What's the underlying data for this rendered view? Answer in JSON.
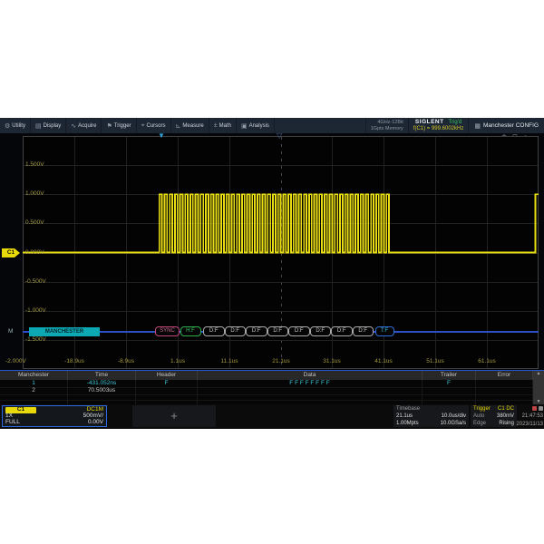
{
  "menu": {
    "items": [
      {
        "icon": "⚙",
        "label": "Utility"
      },
      {
        "icon": "▤",
        "label": "Display"
      },
      {
        "icon": "∿",
        "label": "Acquire"
      },
      {
        "icon": "⚑",
        "label": "Trigger"
      },
      {
        "icon": "⌖",
        "label": "Cursors"
      },
      {
        "icon": "⊾",
        "label": "Measure"
      },
      {
        "icon": "±",
        "label": "Math"
      },
      {
        "icon": "▣",
        "label": "Analysis"
      }
    ],
    "bandwidth": "4GHz-12Bit",
    "memory": "1Gpts Memory",
    "brand": "SIGLENT",
    "trig_status": "Trig'd",
    "freq_readout": "f(C1) = 999.6002kHz",
    "config_icon": "▦",
    "config_label": "Manchester CONFIG"
  },
  "display": {
    "corner_icons": [
      {
        "glyph": "◉",
        "name": "record-icon"
      },
      {
        "glyph": "⊡",
        "name": "fullscreen-icon"
      },
      {
        "glyph": "∩",
        "name": "headset-icon"
      }
    ],
    "trig_marker_solid": "▼",
    "trig_marker_hollow": "▽",
    "v_labels": [
      "1.500V",
      "1.000V",
      "0.500V",
      "0.000V",
      "-0.500V",
      "-1.000V",
      "-1.500V"
    ],
    "v_label_bottom": "-2.000V",
    "t_labels": [
      "-18.9us",
      "-8.9us",
      "1.1us",
      "11.1us",
      "21.1us",
      "31.1us",
      "41.1us",
      "51.1us",
      "61.1us"
    ],
    "decode": {
      "channel": "M",
      "name": "MANCHESTER",
      "boxes": [
        {
          "label": "SYNC",
          "type": "sync"
        },
        {
          "label": "H:F",
          "type": "header"
        },
        {
          "label": "D:F",
          "type": "data"
        },
        {
          "label": "D:F",
          "type": "data"
        },
        {
          "label": "D:F",
          "type": "data"
        },
        {
          "label": "D:F",
          "type": "data"
        },
        {
          "label": "D:F",
          "type": "data"
        },
        {
          "label": "D:F",
          "type": "data"
        },
        {
          "label": "D:F",
          "type": "data"
        },
        {
          "label": "D:F",
          "type": "data"
        },
        {
          "label": "T:F",
          "type": "trailer"
        }
      ]
    }
  },
  "waveform": {
    "channel": "C1",
    "color": "#e8dc14",
    "volts_per_div": 0.5,
    "time_per_div_us": 10,
    "delay_us": 21.1,
    "high_v": 1.0,
    "low_v": 0.0,
    "burst_start_us": -2.4,
    "burst_end_us": 42.9,
    "period_us": 1.0004,
    "frame2_start_us": 70.5
  },
  "table": {
    "columns": [
      "Manchester",
      "Time",
      "Header",
      "Data",
      "Trailer",
      "Error"
    ],
    "rows": [
      {
        "selected": true,
        "cells": [
          "1",
          "-431.052ns",
          "F",
          "F F F F F F F F",
          "F",
          ""
        ]
      },
      {
        "selected": false,
        "cells": [
          "2",
          "70.5003us",
          "",
          "",
          "",
          ""
        ]
      },
      {
        "selected": false,
        "cells": [
          "",
          "",
          "",
          "",
          "",
          ""
        ]
      },
      {
        "selected": false,
        "cells": [
          "",
          "",
          "",
          "",
          "",
          ""
        ]
      }
    ],
    "scroll_up": "▲",
    "scroll_down": "▼"
  },
  "channel_box": {
    "name": "C1",
    "coupling": "DC1M",
    "probe": "1X",
    "scale": "500mV/",
    "bw": "FULL",
    "offset": "0.00V"
  },
  "add_channel_label": "+",
  "timebase": {
    "title": "Timebase",
    "delay": "21.1us",
    "scale": "10.0us/div",
    "points": "1.00Mpts",
    "rate": "10.0GSa/s"
  },
  "trigger": {
    "title": "Trigger",
    "source": "C1 DC",
    "mode": "Auto",
    "level": "380mV",
    "type": "Edge",
    "slope": "Rising"
  },
  "clock": {
    "time": "21:47:53",
    "date": "2023/11/13"
  },
  "colors": {
    "accent_yellow": "#e8d90a",
    "trig_green": "#39c261",
    "decode_teal": "#0ca8b4",
    "select_cyan": "#3fc8da",
    "bus_blue": "#2a52c4"
  }
}
